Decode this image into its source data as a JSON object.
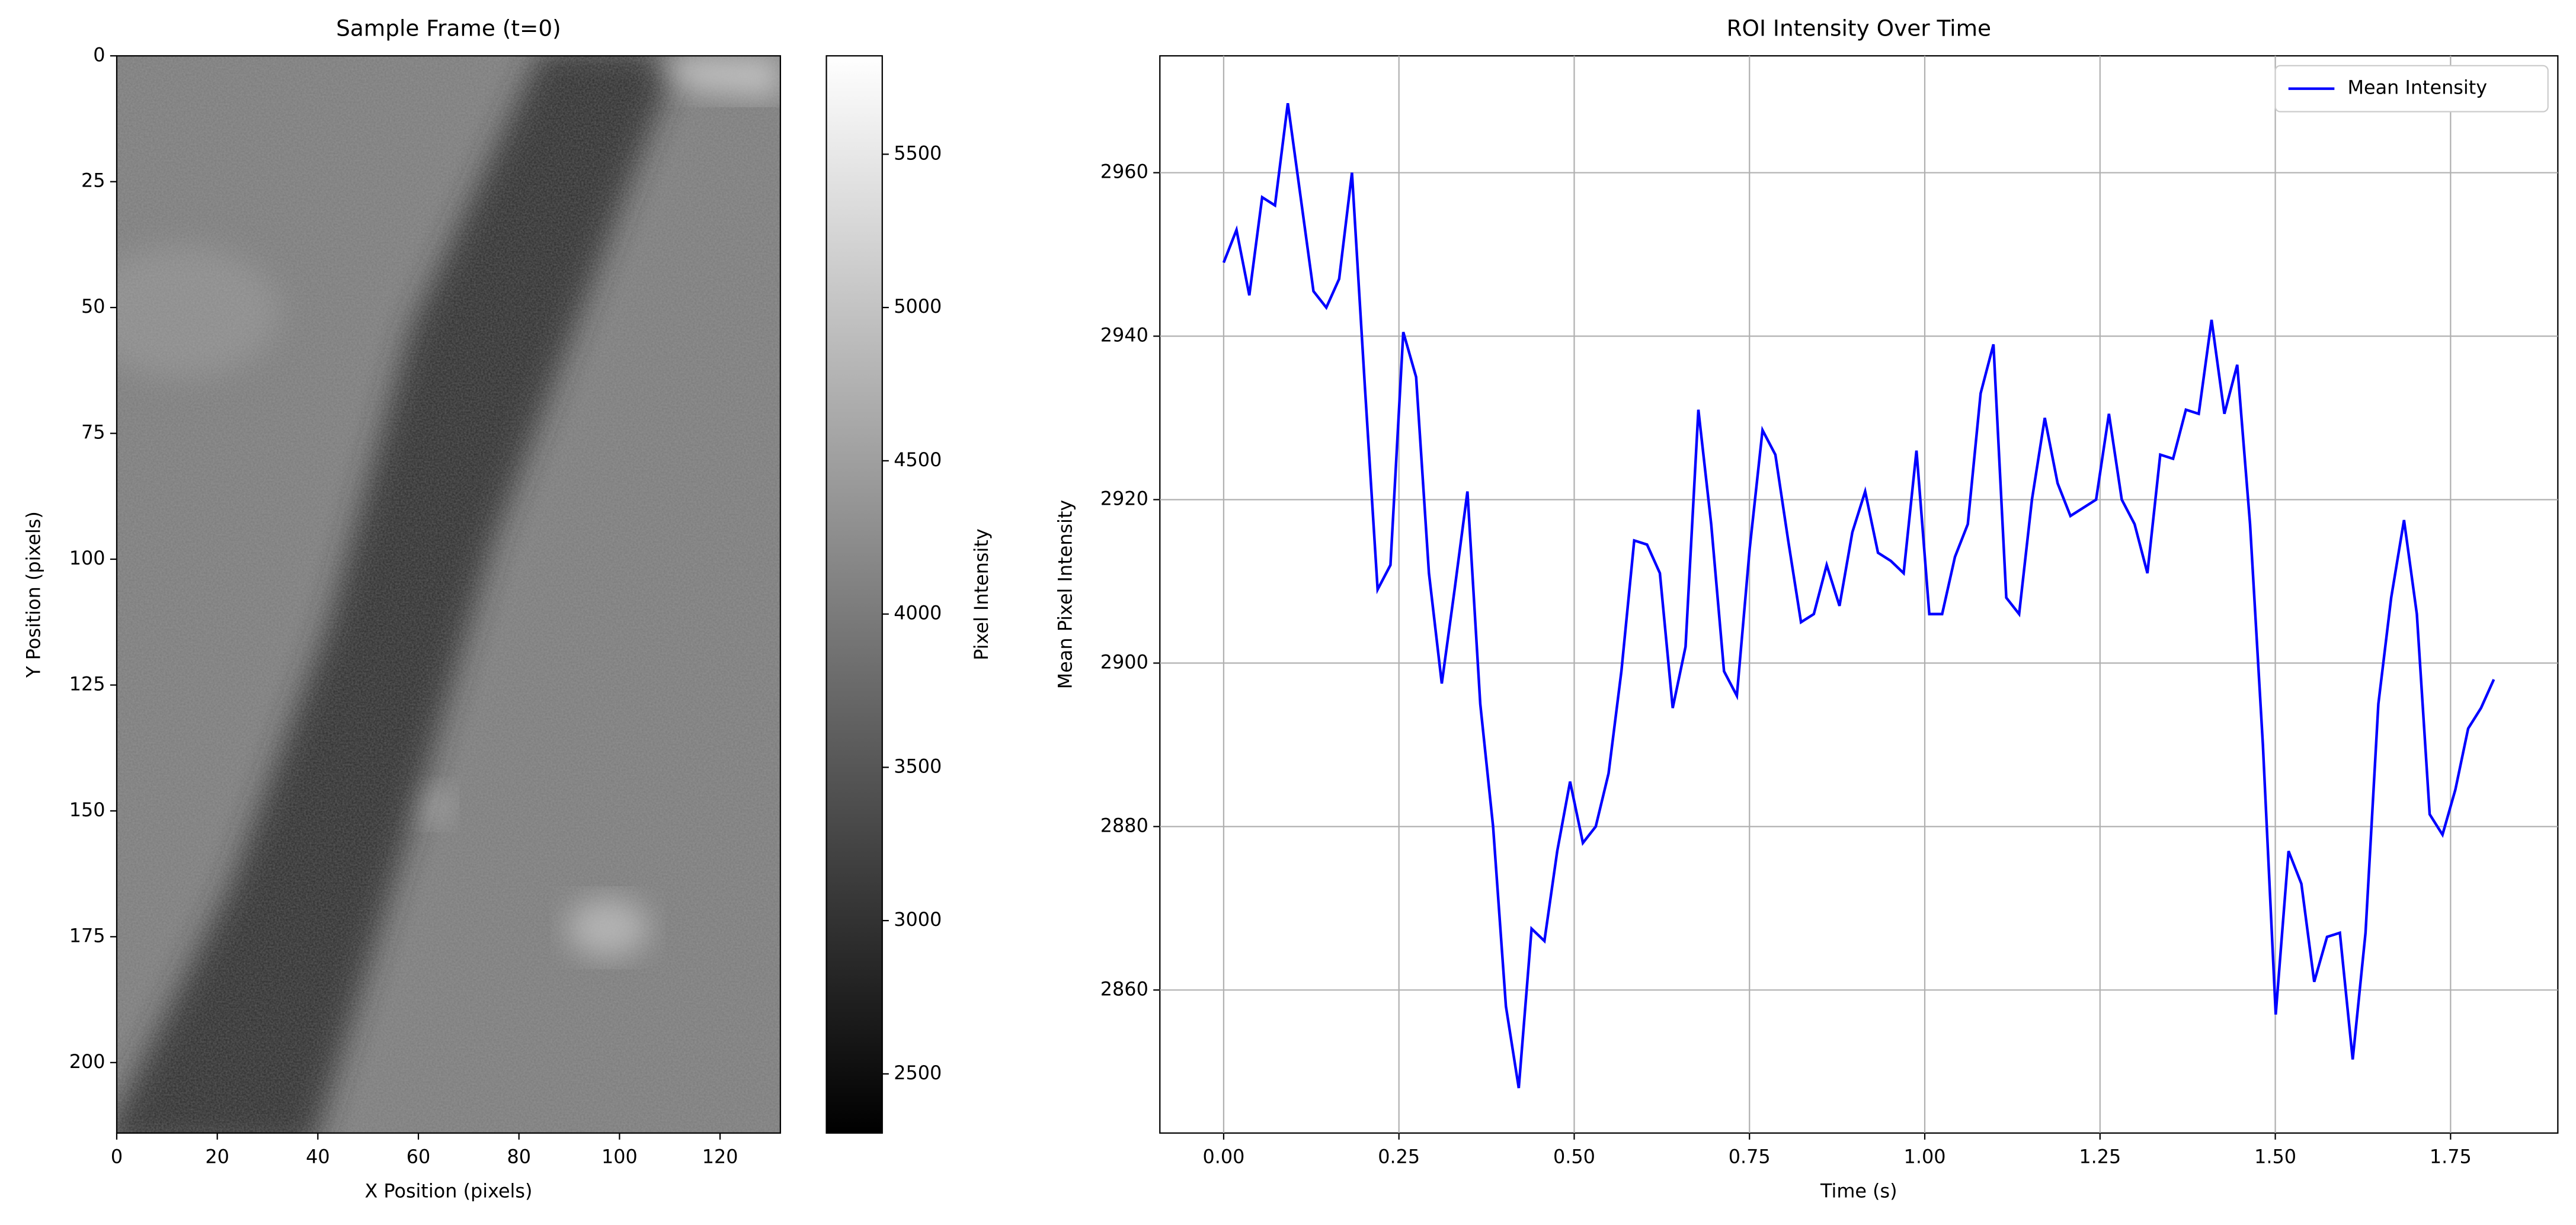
{
  "chart_data": [
    {
      "type": "image",
      "title": "Sample Frame (t=0)",
      "x_label": "X Position (pixels)",
      "y_label": "Y Position (pixels)",
      "xlim": [
        0,
        132
      ],
      "ylim": [
        214,
        0
      ],
      "xticks": [
        0,
        20,
        40,
        60,
        80,
        100,
        120
      ],
      "yticks": [
        0,
        25,
        50,
        75,
        100,
        125,
        150,
        175,
        200
      ],
      "colormap": "gray",
      "colorbar": {
        "label": "Pixel Intensity",
        "lim": [
          2307,
          5821
        ],
        "ticks": [
          2500,
          3000,
          3500,
          4000,
          4500,
          5000,
          5500
        ]
      }
    },
    {
      "type": "line",
      "title": "ROI Intensity Over Time",
      "x_label": "Time (s)",
      "y_label": "Mean Pixel Intensity",
      "xlim": [
        -0.091,
        1.903
      ],
      "ylim": [
        2842.5,
        2974.3
      ],
      "xticks": [
        {
          "value": 0,
          "label": "0.00"
        },
        {
          "value": 0.25,
          "label": "0.25"
        },
        {
          "value": 0.5,
          "label": "0.50"
        },
        {
          "value": 0.75,
          "label": "0.75"
        },
        {
          "value": 1,
          "label": "1.00"
        },
        {
          "value": 1.25,
          "label": "1.25"
        },
        {
          "value": 1.5,
          "label": "1.50"
        },
        {
          "value": 1.75,
          "label": "1.75"
        }
      ],
      "yticks": [
        2860,
        2880,
        2900,
        2920,
        2940,
        2960
      ],
      "grid": true,
      "legend": "upper right",
      "x": [
        0,
        0.0183,
        0.0366,
        0.0549,
        0.0732,
        0.0915,
        0.1098,
        0.1281,
        0.1464,
        0.1647,
        0.183,
        0.2013,
        0.2196,
        0.2379,
        0.2562,
        0.2745,
        0.2928,
        0.3111,
        0.3294,
        0.3477,
        0.366,
        0.3843,
        0.4026,
        0.4209,
        0.4392,
        0.4575,
        0.4758,
        0.4941,
        0.5124,
        0.5307,
        0.549,
        0.5673,
        0.5856,
        0.6039,
        0.6222,
        0.6405,
        0.6588,
        0.6771,
        0.6954,
        0.7137,
        0.732,
        0.7503,
        0.7686,
        0.7869,
        0.8052,
        0.8235,
        0.8418,
        0.8601,
        0.8784,
        0.8967,
        0.915,
        0.9333,
        0.9516,
        0.9699,
        0.9882,
        1.0065,
        1.0248,
        1.0431,
        1.0614,
        1.0797,
        1.098,
        1.1163,
        1.1346,
        1.1529,
        1.1712,
        1.1895,
        1.2078,
        1.2261,
        1.2444,
        1.2627,
        1.281,
        1.2993,
        1.3176,
        1.3359,
        1.3542,
        1.3725,
        1.3908,
        1.4091,
        1.4274,
        1.4457,
        1.464,
        1.4823,
        1.5006,
        1.5189,
        1.5372,
        1.5555,
        1.5738,
        1.5921,
        1.6104,
        1.6287,
        1.647,
        1.6653,
        1.6836,
        1.7019,
        1.7202,
        1.7385,
        1.7568,
        1.7751,
        1.7934,
        1.8117
      ],
      "series": [
        {
          "name": "Mean Intensity",
          "color": "#0000ff",
          "values": [
            2949,
            2953,
            2945,
            2957,
            2956,
            2968.5,
            2957,
            2945.5,
            2943.5,
            2947,
            2960,
            2934,
            2909,
            2912,
            2940.5,
            2935,
            2911,
            2897.5,
            2909,
            2921,
            2895,
            2880,
            2858,
            2848,
            2867.5,
            2866,
            2877,
            2885.5,
            2878,
            2880,
            2886.5,
            2899,
            2915,
            2914.5,
            2911,
            2894.5,
            2902,
            2931,
            2917,
            2899,
            2896,
            2914,
            2928.5,
            2925.5,
            2915,
            2905,
            2906,
            2912,
            2907,
            2916,
            2921,
            2913.5,
            2912.5,
            2911,
            2926,
            2906,
            2906,
            2913,
            2917,
            2933,
            2939,
            2908,
            2906,
            2920,
            2930,
            2922,
            2918,
            2919,
            2920,
            2930.5,
            2920,
            2917,
            2911,
            2925.5,
            2925,
            2931,
            2930.5,
            2942,
            2930.5,
            2936.5,
            2917,
            2890,
            2857,
            2877,
            2873,
            2861,
            2866.5,
            2867,
            2851.5,
            2867,
            2895,
            2908,
            2917.5,
            2906,
            2881.5,
            2879,
            2884.5,
            2892,
            2894.5,
            2898
          ]
        }
      ]
    }
  ]
}
